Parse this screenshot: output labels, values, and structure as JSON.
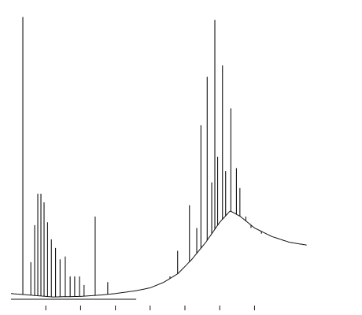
{
  "chart_data": {
    "type": "line",
    "title": "",
    "xlabel": "",
    "ylabel": "",
    "xlim": [
      0,
      100
    ],
    "ylim": [
      0,
      100
    ],
    "x_ticks": [
      10,
      20,
      30,
      40,
      50,
      60,
      70
    ],
    "tick_labels_shown": false,
    "grid": false,
    "legend": "none",
    "baseline": [
      {
        "x": 0,
        "y": 2
      },
      {
        "x": 5,
        "y": 1.5
      },
      {
        "x": 12,
        "y": 0.8
      },
      {
        "x": 20,
        "y": 1
      },
      {
        "x": 26,
        "y": 1.5
      },
      {
        "x": 30,
        "y": 2
      },
      {
        "x": 36,
        "y": 3
      },
      {
        "x": 40,
        "y": 4
      },
      {
        "x": 44,
        "y": 6
      },
      {
        "x": 48,
        "y": 9
      },
      {
        "x": 52,
        "y": 14
      },
      {
        "x": 56,
        "y": 20
      },
      {
        "x": 60,
        "y": 27
      },
      {
        "x": 63,
        "y": 31
      },
      {
        "x": 66,
        "y": 29
      },
      {
        "x": 70,
        "y": 25
      },
      {
        "x": 75,
        "y": 22
      },
      {
        "x": 80,
        "y": 20
      },
      {
        "x": 85,
        "y": 19
      }
    ],
    "peaks": [
      {
        "x": 3.4,
        "y": 99
      },
      {
        "x": 5.7,
        "y": 13
      },
      {
        "x": 6.8,
        "y": 26
      },
      {
        "x": 7.7,
        "y": 37
      },
      {
        "x": 8.6,
        "y": 37
      },
      {
        "x": 9.5,
        "y": 34
      },
      {
        "x": 10.5,
        "y": 27
      },
      {
        "x": 11.6,
        "y": 21
      },
      {
        "x": 12.8,
        "y": 18
      },
      {
        "x": 14.1,
        "y": 14
      },
      {
        "x": 15.6,
        "y": 15
      },
      {
        "x": 17.0,
        "y": 8
      },
      {
        "x": 18.3,
        "y": 8
      },
      {
        "x": 19.7,
        "y": 8
      },
      {
        "x": 21.0,
        "y": 5
      },
      {
        "x": 24.2,
        "y": 29
      },
      {
        "x": 27.8,
        "y": 6
      },
      {
        "x": 45.7,
        "y": 8
      },
      {
        "x": 47.9,
        "y": 17
      },
      {
        "x": 51.3,
        "y": 33
      },
      {
        "x": 53.4,
        "y": 25
      },
      {
        "x": 54.6,
        "y": 61
      },
      {
        "x": 56.4,
        "y": 78
      },
      {
        "x": 57.7,
        "y": 41
      },
      {
        "x": 58.6,
        "y": 98
      },
      {
        "x": 59.4,
        "y": 50
      },
      {
        "x": 60.8,
        "y": 82
      },
      {
        "x": 61.7,
        "y": 45
      },
      {
        "x": 63.2,
        "y": 67
      },
      {
        "x": 64.8,
        "y": 46
      },
      {
        "x": 65.8,
        "y": 39
      },
      {
        "x": 67.5,
        "y": 29
      },
      {
        "x": 69.0,
        "y": 25
      },
      {
        "x": 72.0,
        "y": 23
      }
    ]
  }
}
